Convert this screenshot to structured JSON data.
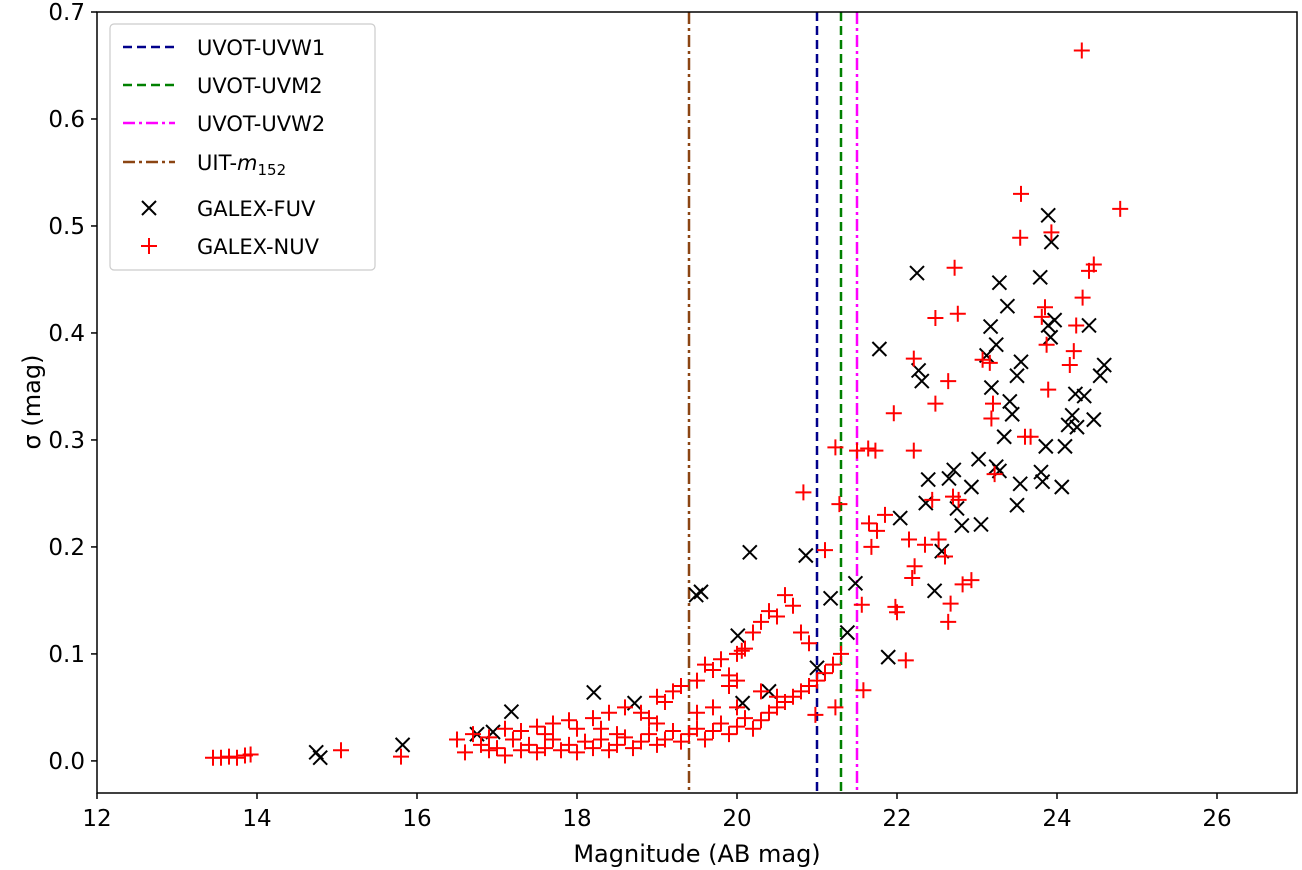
{
  "chart_data": {
    "type": "scatter",
    "title": "",
    "xlabel": "Magnitude (AB mag)",
    "ylabel": "σ (mag)",
    "xlim": [
      12,
      27
    ],
    "ylim": [
      -0.03,
      0.7
    ],
    "xticks": [
      "12",
      "14",
      "16",
      "18",
      "20",
      "22",
      "24",
      "26"
    ],
    "yticks": [
      "0.0",
      "0.1",
      "0.2",
      "0.3",
      "0.4",
      "0.5",
      "0.6",
      "0.7"
    ],
    "grid": false,
    "legend_position": "top-left",
    "vlines": [
      {
        "name": "UVOT-UVW1",
        "x": 21.0,
        "color": "#00008b",
        "style": "dashed"
      },
      {
        "name": "UVOT-UVM2",
        "x": 21.3,
        "color": "#008000",
        "style": "dashed"
      },
      {
        "name": "UVOT-UVW2",
        "x": 21.5,
        "color": "#ff00ff",
        "style": "dashdot"
      },
      {
        "name": "UIT-m152",
        "label": "UIT-",
        "label_italic": "m",
        "label_sub": "152",
        "x": 19.4,
        "color": "#8b4513",
        "style": "dashdot"
      }
    ],
    "series": [
      {
        "name": "GALEX-FUV",
        "marker": "x",
        "color": "#000000",
        "points": [
          [
            14.74,
            0.008
          ],
          [
            14.79,
            0.003
          ],
          [
            15.82,
            0.015
          ],
          [
            16.75,
            0.025
          ],
          [
            16.95,
            0.027
          ],
          [
            17.18,
            0.046
          ],
          [
            18.21,
            0.064
          ],
          [
            18.72,
            0.054
          ],
          [
            19.49,
            0.155
          ],
          [
            19.55,
            0.158
          ],
          [
            20.01,
            0.117
          ],
          [
            20.07,
            0.054
          ],
          [
            20.16,
            0.195
          ],
          [
            20.4,
            0.065
          ],
          [
            20.86,
            0.192
          ],
          [
            21.0,
            0.087
          ],
          [
            21.17,
            0.152
          ],
          [
            21.38,
            0.12
          ],
          [
            21.48,
            0.166
          ],
          [
            21.78,
            0.385
          ],
          [
            21.89,
            0.097
          ],
          [
            22.04,
            0.227
          ],
          [
            22.25,
            0.456
          ],
          [
            22.27,
            0.365
          ],
          [
            22.31,
            0.355
          ],
          [
            22.36,
            0.241
          ],
          [
            22.39,
            0.263
          ],
          [
            22.47,
            0.159
          ],
          [
            22.56,
            0.196
          ],
          [
            22.65,
            0.264
          ],
          [
            22.71,
            0.272
          ],
          [
            22.75,
            0.236
          ],
          [
            22.81,
            0.22
          ],
          [
            22.93,
            0.256
          ],
          [
            23.02,
            0.282
          ],
          [
            23.05,
            0.221
          ],
          [
            23.12,
            0.379
          ],
          [
            23.17,
            0.406
          ],
          [
            23.18,
            0.349
          ],
          [
            23.24,
            0.389
          ],
          [
            23.24,
            0.275
          ],
          [
            23.28,
            0.447
          ],
          [
            23.28,
            0.271
          ],
          [
            23.34,
            0.303
          ],
          [
            23.38,
            0.425
          ],
          [
            23.41,
            0.336
          ],
          [
            23.44,
            0.324
          ],
          [
            23.5,
            0.36
          ],
          [
            23.5,
            0.239
          ],
          [
            23.54,
            0.259
          ],
          [
            23.55,
            0.373
          ],
          [
            23.79,
            0.452
          ],
          [
            23.8,
            0.27
          ],
          [
            23.82,
            0.261
          ],
          [
            23.86,
            0.294
          ],
          [
            23.89,
            0.51
          ],
          [
            23.89,
            0.407
          ],
          [
            23.92,
            0.396
          ],
          [
            23.93,
            0.485
          ],
          [
            23.97,
            0.412
          ],
          [
            24.06,
            0.256
          ],
          [
            24.1,
            0.294
          ],
          [
            24.14,
            0.314
          ],
          [
            24.19,
            0.323
          ],
          [
            24.23,
            0.343
          ],
          [
            24.25,
            0.312
          ],
          [
            24.34,
            0.341
          ],
          [
            24.4,
            0.407
          ],
          [
            24.46,
            0.319
          ],
          [
            24.54,
            0.36
          ],
          [
            24.59,
            0.37
          ]
        ]
      },
      {
        "name": "GALEX-NUV",
        "marker": "+",
        "color": "#ff0000",
        "points": [
          [
            13.45,
            0.003
          ],
          [
            13.55,
            0.003
          ],
          [
            13.65,
            0.004
          ],
          [
            13.75,
            0.003
          ],
          [
            13.85,
            0.005
          ],
          [
            13.92,
            0.006
          ],
          [
            15.05,
            0.01
          ],
          [
            15.8,
            0.004
          ],
          [
            16.5,
            0.02
          ],
          [
            16.6,
            0.008
          ],
          [
            16.8,
            0.015
          ],
          [
            16.9,
            0.01
          ],
          [
            17.0,
            0.012
          ],
          [
            17.1,
            0.005
          ],
          [
            17.2,
            0.02
          ],
          [
            17.3,
            0.01
          ],
          [
            17.4,
            0.015
          ],
          [
            17.5,
            0.008
          ],
          [
            17.6,
            0.012
          ],
          [
            17.7,
            0.02
          ],
          [
            17.8,
            0.01
          ],
          [
            17.9,
            0.015
          ],
          [
            18.0,
            0.008
          ],
          [
            18.1,
            0.018
          ],
          [
            18.2,
            0.012
          ],
          [
            18.3,
            0.02
          ],
          [
            18.4,
            0.01
          ],
          [
            18.5,
            0.015
          ],
          [
            18.6,
            0.022
          ],
          [
            18.7,
            0.012
          ],
          [
            18.8,
            0.018
          ],
          [
            18.9,
            0.025
          ],
          [
            19.0,
            0.015
          ],
          [
            19.1,
            0.02
          ],
          [
            19.2,
            0.028
          ],
          [
            19.3,
            0.018
          ],
          [
            19.4,
            0.025
          ],
          [
            19.5,
            0.03
          ],
          [
            19.6,
            0.02
          ],
          [
            19.7,
            0.028
          ],
          [
            19.8,
            0.035
          ],
          [
            19.9,
            0.025
          ],
          [
            20.0,
            0.032
          ],
          [
            20.1,
            0.04
          ],
          [
            20.2,
            0.03
          ],
          [
            20.3,
            0.038
          ],
          [
            20.4,
            0.045
          ],
          [
            20.5,
            0.05
          ],
          [
            20.6,
            0.055
          ],
          [
            20.7,
            0.06
          ],
          [
            20.8,
            0.065
          ],
          [
            20.9,
            0.07
          ],
          [
            21.0,
            0.075
          ],
          [
            21.1,
            0.082
          ],
          [
            21.2,
            0.09
          ],
          [
            21.3,
            0.1
          ],
          [
            16.7,
            0.025
          ],
          [
            16.9,
            0.022
          ],
          [
            17.1,
            0.03
          ],
          [
            17.3,
            0.028
          ],
          [
            17.5,
            0.032
          ],
          [
            17.7,
            0.035
          ],
          [
            17.9,
            0.038
          ],
          [
            18.0,
            0.03
          ],
          [
            18.2,
            0.04
          ],
          [
            18.4,
            0.045
          ],
          [
            18.6,
            0.05
          ],
          [
            18.8,
            0.045
          ],
          [
            19.0,
            0.06
          ],
          [
            19.1,
            0.055
          ],
          [
            19.2,
            0.065
          ],
          [
            19.3,
            0.07
          ],
          [
            19.5,
            0.075
          ],
          [
            19.6,
            0.09
          ],
          [
            19.7,
            0.085
          ],
          [
            19.8,
            0.095
          ],
          [
            19.9,
            0.08
          ],
          [
            20.0,
            0.1
          ],
          [
            20.1,
            0.105
          ],
          [
            20.2,
            0.12
          ],
          [
            20.3,
            0.13
          ],
          [
            20.4,
            0.14
          ],
          [
            20.5,
            0.135
          ],
          [
            20.6,
            0.155
          ],
          [
            20.7,
            0.145
          ],
          [
            20.8,
            0.12
          ],
          [
            20.9,
            0.11
          ],
          [
            19.9,
            0.07
          ],
          [
            20.0,
            0.075
          ],
          [
            18.5,
            0.025
          ],
          [
            19.0,
            0.035
          ],
          [
            19.5,
            0.045
          ],
          [
            20.0,
            0.05
          ],
          [
            20.5,
            0.06
          ],
          [
            20.06,
            0.103
          ],
          [
            17.6,
            0.025
          ],
          [
            18.3,
            0.03
          ],
          [
            18.9,
            0.04
          ],
          [
            19.7,
            0.05
          ],
          [
            20.3,
            0.065
          ],
          [
            20.83,
            0.251
          ],
          [
            21.23,
            0.293
          ],
          [
            21.28,
            0.24
          ],
          [
            21.1,
            0.197
          ],
          [
            20.98,
            0.043
          ],
          [
            21.23,
            0.05
          ],
          [
            21.5,
            0.29
          ],
          [
            21.56,
            0.146
          ],
          [
            21.58,
            0.066
          ],
          [
            21.64,
            0.292
          ],
          [
            21.73,
            0.29
          ],
          [
            21.65,
            0.222
          ],
          [
            21.68,
            0.2
          ],
          [
            21.75,
            0.215
          ],
          [
            21.85,
            0.23
          ],
          [
            21.96,
            0.325
          ],
          [
            21.98,
            0.144
          ],
          [
            22.0,
            0.139
          ],
          [
            22.11,
            0.094
          ],
          [
            22.21,
            0.376
          ],
          [
            22.21,
            0.29
          ],
          [
            22.15,
            0.207
          ],
          [
            22.22,
            0.182
          ],
          [
            22.19,
            0.171
          ],
          [
            22.35,
            0.202
          ],
          [
            22.44,
            0.244
          ],
          [
            22.48,
            0.414
          ],
          [
            22.48,
            0.334
          ],
          [
            22.52,
            0.207
          ],
          [
            22.6,
            0.191
          ],
          [
            22.64,
            0.355
          ],
          [
            22.64,
            0.13
          ],
          [
            22.67,
            0.147
          ],
          [
            22.7,
            0.247
          ],
          [
            22.72,
            0.461
          ],
          [
            22.76,
            0.418
          ],
          [
            22.77,
            0.244
          ],
          [
            22.82,
            0.165
          ],
          [
            22.93,
            0.169
          ],
          [
            23.07,
            0.375
          ],
          [
            23.16,
            0.372
          ],
          [
            23.18,
            0.32
          ],
          [
            23.2,
            0.334
          ],
          [
            23.22,
            0.268
          ],
          [
            23.6,
            0.303
          ],
          [
            23.67,
            0.303
          ],
          [
            23.55,
            0.53
          ],
          [
            23.54,
            0.489
          ],
          [
            23.81,
            0.415
          ],
          [
            23.85,
            0.424
          ],
          [
            23.87,
            0.389
          ],
          [
            23.89,
            0.347
          ],
          [
            23.93,
            0.494
          ],
          [
            24.16,
            0.37
          ],
          [
            24.21,
            0.383
          ],
          [
            24.24,
            0.407
          ],
          [
            24.32,
            0.433
          ],
          [
            24.4,
            0.458
          ],
          [
            24.46,
            0.464
          ],
          [
            24.31,
            0.664
          ],
          [
            24.79,
            0.516
          ]
        ]
      }
    ]
  }
}
